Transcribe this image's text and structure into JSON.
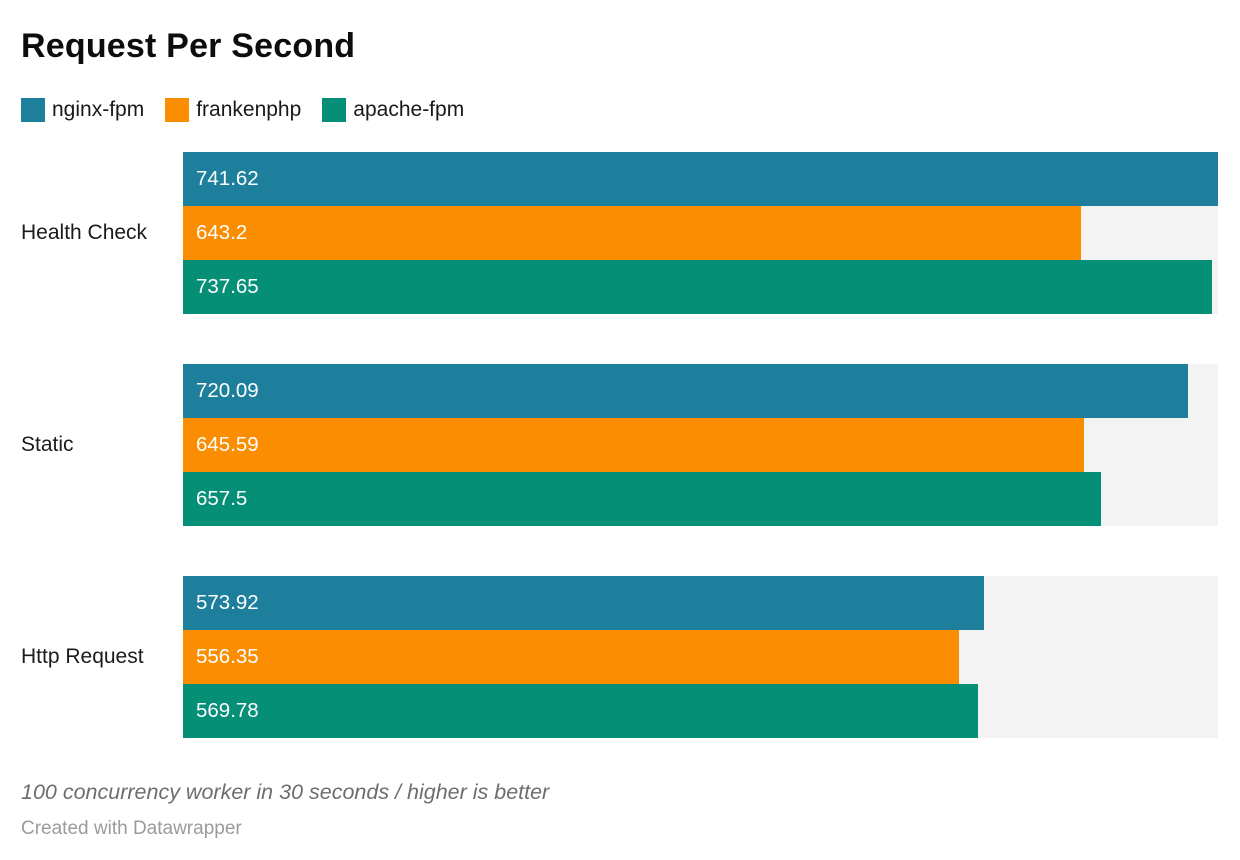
{
  "title": "Request Per Second",
  "chart_data": {
    "type": "bar",
    "orientation": "horizontal",
    "title": "Request Per Second",
    "categories": [
      "Health Check",
      "Static",
      "Http Request"
    ],
    "series": [
      {
        "name": "nginx-fpm",
        "color": "#1e7f9c",
        "values": [
          741.62,
          720.09,
          573.92
        ]
      },
      {
        "name": "frankenphp",
        "color": "#fa8d00",
        "values": [
          643.2,
          645.59,
          556.35
        ]
      },
      {
        "name": "apache-fpm",
        "color": "#048f76",
        "values": [
          737.65,
          657.5,
          569.78
        ]
      }
    ],
    "xmax": 741.62,
    "xmin": 0,
    "value_labels_shown": true,
    "grid": false,
    "legend_position": "top",
    "track_color": "#f2f3f2"
  },
  "footer": {
    "note": "100 concurrency worker in 30 seconds / higher is better",
    "credit": "Created with Datawrapper"
  }
}
